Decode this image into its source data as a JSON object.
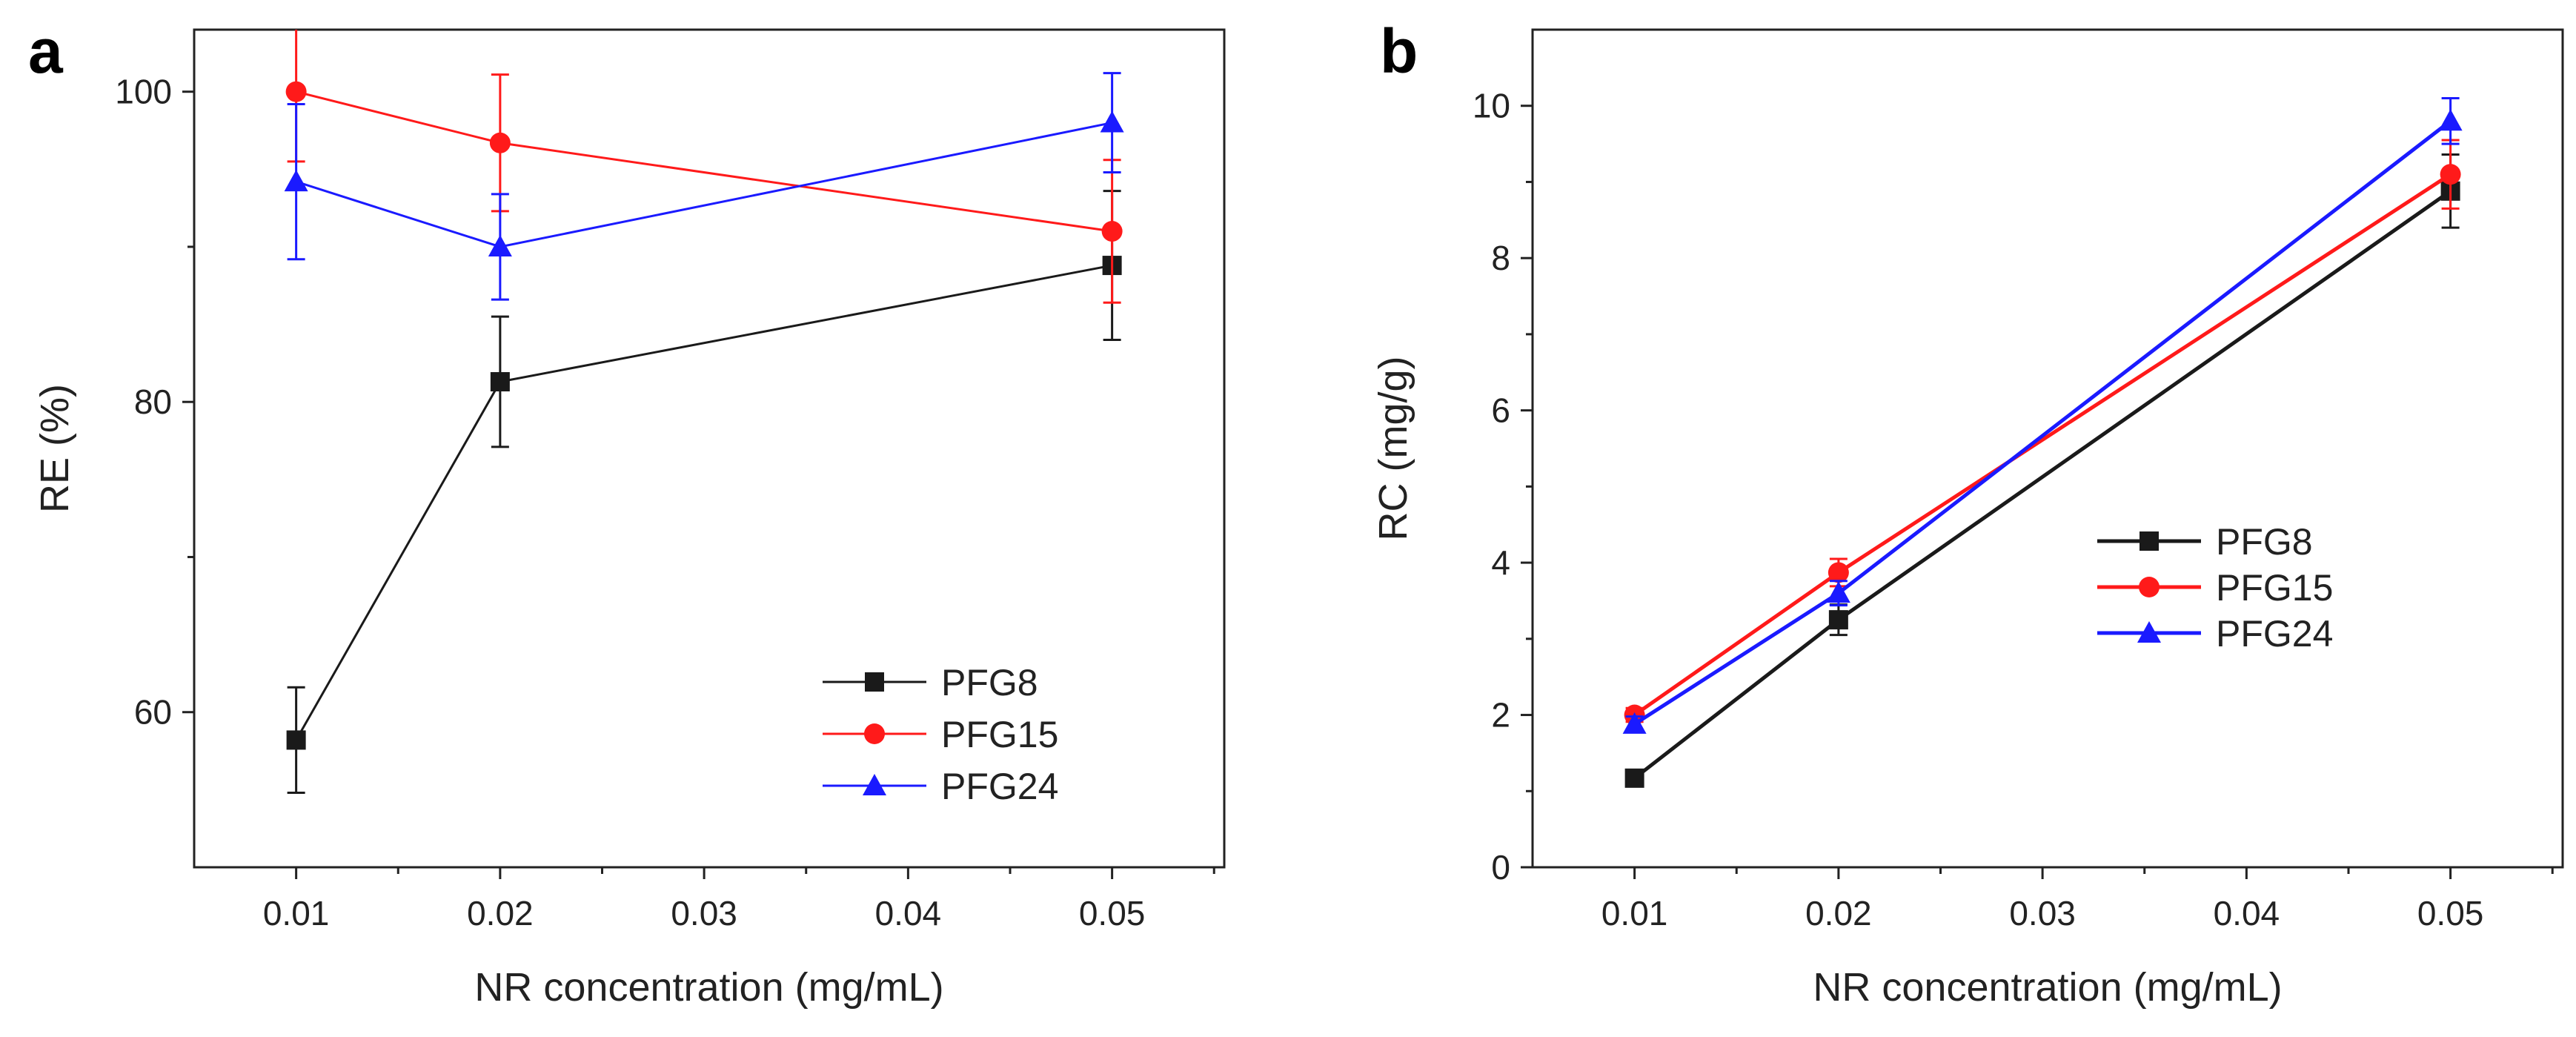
{
  "chart_data": [
    {
      "panel": "a",
      "type": "line",
      "xlabel": "NR concentration (mg/mL)",
      "ylabel": "RE (%)",
      "xlim": [
        0.005,
        0.0555
      ],
      "ylim": [
        50,
        104
      ],
      "xticks": [
        0.01,
        0.02,
        0.03,
        0.04,
        0.05
      ],
      "xtick_labels": [
        "0.01",
        "0.02",
        "0.03",
        "0.04",
        "0.05"
      ],
      "yticks": [
        60,
        80,
        100
      ],
      "ytick_labels": [
        "60",
        "80",
        "100"
      ],
      "yminor": [
        70,
        90
      ],
      "legend_position": "bottom-right",
      "series": [
        {
          "name": "PFG8",
          "color": "#1a1a1a",
          "marker": "square",
          "x": [
            0.01,
            0.02,
            0.05
          ],
          "y": [
            58.2,
            81.3,
            88.8
          ],
          "err": [
            3.4,
            4.2,
            4.8
          ]
        },
        {
          "name": "PFG15",
          "color": "#ff1a1a",
          "marker": "circle",
          "x": [
            0.01,
            0.02,
            0.05
          ],
          "y": [
            100.0,
            96.7,
            91.0
          ],
          "err": [
            4.5,
            4.4,
            4.6
          ]
        },
        {
          "name": "PFG24",
          "color": "#1a1aff",
          "marker": "triangle",
          "x": [
            0.01,
            0.02,
            0.05
          ],
          "y": [
            94.2,
            90.0,
            98.0
          ],
          "err": [
            5.0,
            3.4,
            3.2
          ]
        }
      ]
    },
    {
      "panel": "b",
      "type": "line",
      "xlabel": "NR concentration (mg/mL)",
      "ylabel": "RC (mg/g)",
      "xlim": [
        0.005,
        0.0555
      ],
      "ylim": [
        0,
        11
      ],
      "xticks": [
        0.01,
        0.02,
        0.03,
        0.04,
        0.05
      ],
      "xtick_labels": [
        "0.01",
        "0.02",
        "0.03",
        "0.04",
        "0.05"
      ],
      "yticks": [
        0,
        2,
        4,
        6,
        8,
        10
      ],
      "ytick_labels": [
        "0",
        "2",
        "4",
        "6",
        "8",
        "10"
      ],
      "yminor": [
        1,
        3,
        5,
        7,
        9
      ],
      "legend_position": "center-right",
      "series": [
        {
          "name": "PFG8",
          "color": "#1a1a1a",
          "marker": "square",
          "x": [
            0.01,
            0.02,
            0.05
          ],
          "y": [
            1.17,
            3.25,
            8.88
          ],
          "err": [
            0.07,
            0.2,
            0.48
          ]
        },
        {
          "name": "PFG15",
          "color": "#ff1a1a",
          "marker": "circle",
          "x": [
            0.01,
            0.02,
            0.05
          ],
          "y": [
            2.0,
            3.87,
            9.1
          ],
          "err": [
            0.09,
            0.18,
            0.45
          ]
        },
        {
          "name": "PFG24",
          "color": "#1a1aff",
          "marker": "triangle",
          "x": [
            0.01,
            0.02,
            0.05
          ],
          "y": [
            1.88,
            3.6,
            9.8
          ],
          "err": [
            0.1,
            0.16,
            0.3
          ]
        }
      ]
    }
  ]
}
